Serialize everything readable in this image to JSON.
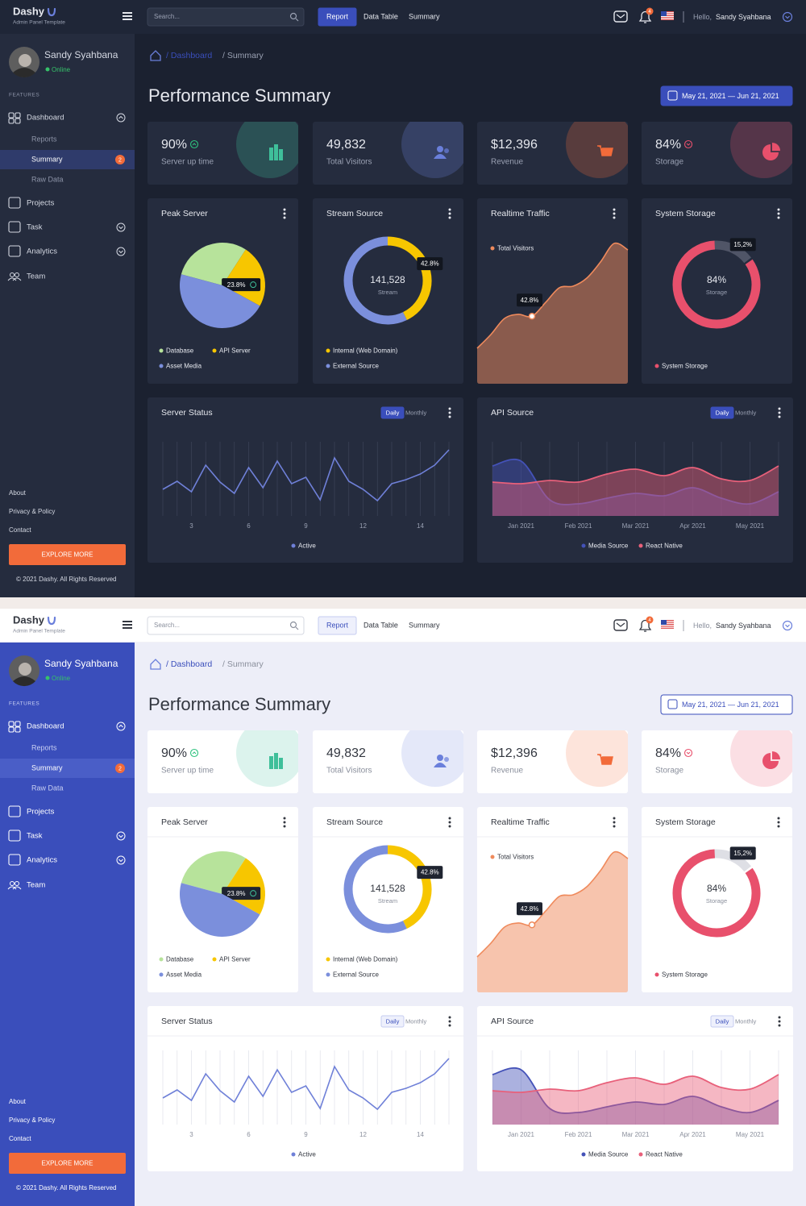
{
  "brand": {
    "name": "Dashy",
    "tagline": "Admin Panel Template"
  },
  "search_placeholder": "Search...",
  "nav": [
    "Report",
    "Data Table",
    "Summary"
  ],
  "notifications": 4,
  "greeting": "Hello,",
  "user": "Sandy Syahbana",
  "status": "Online",
  "sidebar": {
    "section": "FEATURES",
    "menu": [
      {
        "label": "Dashboard",
        "expanded": true,
        "children": [
          {
            "label": "Reports"
          },
          {
            "label": "Summary",
            "badge": 2
          },
          {
            "label": "Raw Data"
          }
        ]
      },
      {
        "label": "Projects"
      },
      {
        "label": "Task",
        "expanded": false
      },
      {
        "label": "Analytics",
        "expanded": false
      },
      {
        "label": "Team"
      }
    ],
    "footer_links": [
      "About",
      "Privacy & Policy",
      "Contact"
    ],
    "button": "EXPLORE MORE",
    "copyright": "© 2021 Dashy. All Rights Reserved"
  },
  "breadcrumb": [
    "/ Dashboard",
    "/ Summary"
  ],
  "title": "Performance Summary",
  "date_range": "May 21, 2021 — Jun 21, 2021",
  "stats": [
    {
      "value": "90%",
      "label": "Server up time",
      "trend": "up",
      "color": "#3fbf9a"
    },
    {
      "value": "49,832",
      "label": "Total Visitors",
      "color": "#6a7fdb"
    },
    {
      "value": "$12,396",
      "label": "Revenue",
      "color": "#f26b3a"
    },
    {
      "value": "84%",
      "label": "Storage",
      "trend": "down",
      "color": "#e8506c"
    }
  ],
  "charts": {
    "peak": {
      "type": "pie",
      "title": "Peak Server",
      "series": [
        {
          "name": "Database",
          "color": "#b7e39b",
          "value": 30
        },
        {
          "name": "API Server",
          "color": "#f7c600",
          "value": 23.8,
          "value_label": "23.8%"
        },
        {
          "name": "Asset Media",
          "color": "#7b8fdc",
          "value": 46.2
        }
      ]
    },
    "stream": {
      "type": "donut",
      "title": "Stream Source",
      "center_value": "141,528",
      "center_label": "Stream",
      "series": [
        {
          "name": "Internal (Web Domain)",
          "color": "#f7c600",
          "value": 42.8,
          "value_label": "42.8%"
        },
        {
          "name": "External Source",
          "color": "#7b8fdc",
          "value": 57.2
        }
      ]
    },
    "traffic": {
      "type": "area",
      "title": "Realtime Traffic",
      "legend": "Total Visitors",
      "color": "#ef8a5c",
      "values": [
        22.5,
        31.2,
        41.4,
        44,
        42.8,
        51.6,
        60.9,
        61.9,
        67,
        77.2,
        89,
        84.9
      ],
      "value_labels": [
        null,
        null,
        null,
        null,
        "42.8%",
        null,
        null,
        null,
        null,
        null,
        null,
        null
      ],
      "ylim": [
        0,
        90
      ]
    },
    "storage": {
      "type": "donut",
      "title": "System Storage",
      "legend": "System Storage",
      "center_label": "Storage",
      "values": [
        84,
        15.2
      ],
      "value_labels": [
        "84%",
        "15,2%"
      ],
      "colors": [
        "#e8506c",
        "#a0a4b4"
      ]
    },
    "server": {
      "type": "line",
      "title": "Server Status",
      "tabs": [
        "Daily",
        "Monthly"
      ],
      "legend": "Active",
      "color": "#6f80d8",
      "categories": [
        null,
        null,
        "3",
        null,
        null,
        null,
        "6",
        null,
        null,
        null,
        "9",
        null,
        null,
        null,
        "12",
        null,
        null,
        null,
        "14",
        null,
        null
      ],
      "values": [
        33,
        43,
        30,
        63,
        42,
        28,
        60,
        35,
        68,
        40,
        48,
        20,
        72,
        43,
        33,
        19,
        40,
        45,
        52,
        63,
        82
      ],
      "ylim": [
        0,
        100
      ]
    },
    "api": {
      "type": "area",
      "title": "API Source",
      "tabs": [
        "Daily",
        "Monthly"
      ],
      "categories": [
        null,
        "Jan 2021",
        null,
        "Feb 2021",
        null,
        "Mar 2021",
        null,
        "Apr 2021",
        null,
        "May 2021",
        null
      ],
      "series": [
        {
          "name": "Media Source",
          "color": "#4452b8",
          "values": [
            62,
            68,
            20,
            15,
            22,
            28,
            25,
            35,
            22,
            15,
            30
          ]
        },
        {
          "name": "React Native",
          "color": "#e8607a",
          "values": [
            42,
            40,
            44,
            42,
            52,
            58,
            50,
            60,
            46,
            44,
            62
          ]
        }
      ],
      "ylim": [
        0,
        100
      ]
    }
  }
}
